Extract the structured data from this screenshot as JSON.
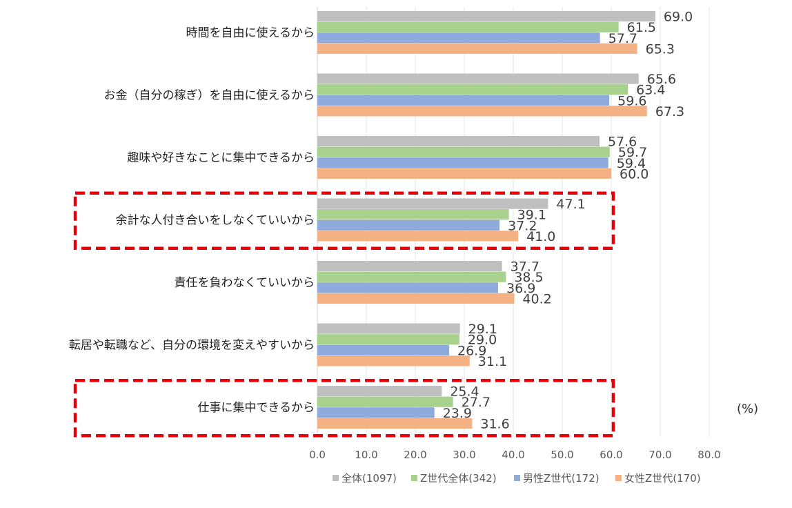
{
  "chart_data": {
    "type": "bar",
    "orientation": "horizontal",
    "unit": "(%)",
    "categories": [
      "時間を自由に使えるから",
      "お金（自分の稼ぎ）を自由に使えるから",
      "趣味や好きなことに集中できるから",
      "余計な人付き合いをしなくていいから",
      "責任を負わなくていいから",
      "転居や転職など、自分の環境を変えやすいから",
      "仕事に集中できるから"
    ],
    "series": [
      {
        "name": "全体(1097)",
        "color": "#BFBFBF",
        "values": [
          69.0,
          65.6,
          57.6,
          47.1,
          37.7,
          29.1,
          25.4
        ]
      },
      {
        "name": "Z世代全体(342)",
        "color": "#A9D18E",
        "values": [
          61.5,
          63.4,
          59.7,
          39.1,
          38.5,
          29.0,
          27.7
        ]
      },
      {
        "name": "男性Z世代(172)",
        "color": "#8FAADC",
        "values": [
          57.7,
          59.6,
          59.4,
          37.2,
          36.9,
          26.9,
          23.9
        ]
      },
      {
        "name": "女性Z世代(170)",
        "color": "#F4B183",
        "values": [
          65.3,
          67.3,
          60.0,
          41.0,
          40.2,
          31.1,
          31.6
        ]
      }
    ],
    "xlim": [
      0,
      80
    ],
    "xticks": [
      "0.0",
      "10.0",
      "20.0",
      "30.0",
      "40.0",
      "50.0",
      "60.0",
      "70.0",
      "80.0"
    ],
    "grid": true,
    "legend_position": "bottom",
    "highlighted_categories": [
      "余計な人付き合いをしなくていいから",
      "仕事に集中できるから"
    ],
    "highlight_color": "#E8000B"
  }
}
